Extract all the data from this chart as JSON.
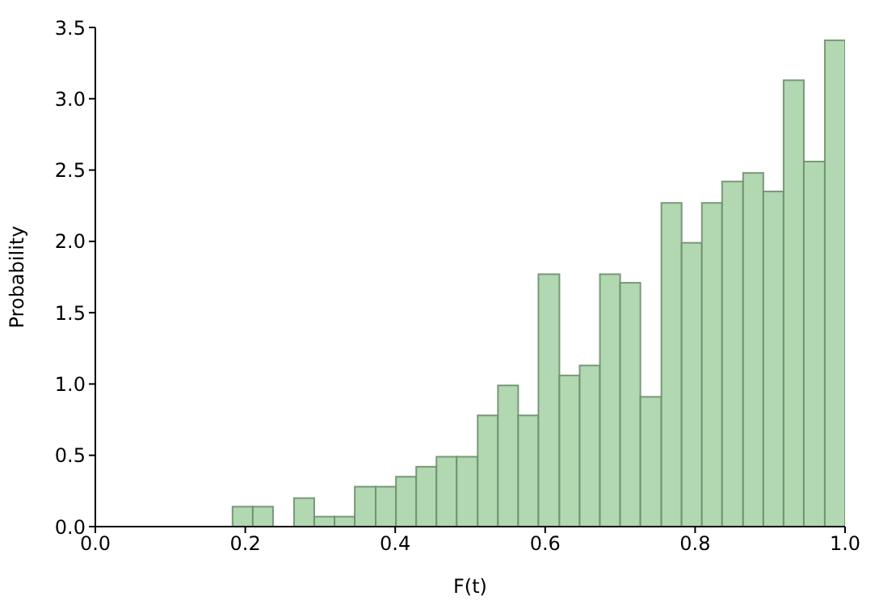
{
  "chart_data": {
    "type": "histogram",
    "xlabel": "F(t)",
    "ylabel": "Probability",
    "bins": [
      0.183,
      0.21,
      0.237,
      0.265,
      0.292,
      0.319,
      0.346,
      0.374,
      0.401,
      0.428,
      0.455,
      0.482,
      0.51,
      0.537,
      0.564,
      0.591,
      0.619,
      0.646,
      0.673,
      0.7,
      0.727,
      0.755,
      0.782,
      0.809,
      0.836,
      0.864,
      0.891,
      0.918,
      0.945,
      0.973,
      1.0
    ],
    "values": [
      0.14,
      0.14,
      0,
      0.2,
      0.07,
      0.07,
      0.28,
      0.28,
      0.35,
      0.42,
      0.49,
      0.49,
      0.78,
      0.99,
      0.78,
      1.77,
      1.06,
      1.13,
      1.77,
      1.71,
      0.91,
      2.27,
      1.99,
      2.27,
      2.42,
      2.48,
      2.35,
      3.13,
      2.56,
      3.41
    ],
    "color": "#b1d8b1",
    "xlim": [
      0,
      1
    ],
    "xticks": [
      {
        "value": 0,
        "label": "0.0"
      },
      0.2,
      0.4,
      0.6,
      0.8,
      {
        "value": 1,
        "label": "1.0"
      }
    ],
    "ylim": [
      0,
      3.5
    ],
    "yticks": [
      {
        "value": 0,
        "label": "0.0"
      },
      0.5,
      {
        "value": 1,
        "label": "1.0"
      },
      1.5,
      {
        "value": 2,
        "label": "2.0"
      },
      2.5,
      {
        "value": 3,
        "label": "3.0"
      },
      3.5
    ],
    "grid": false
  }
}
